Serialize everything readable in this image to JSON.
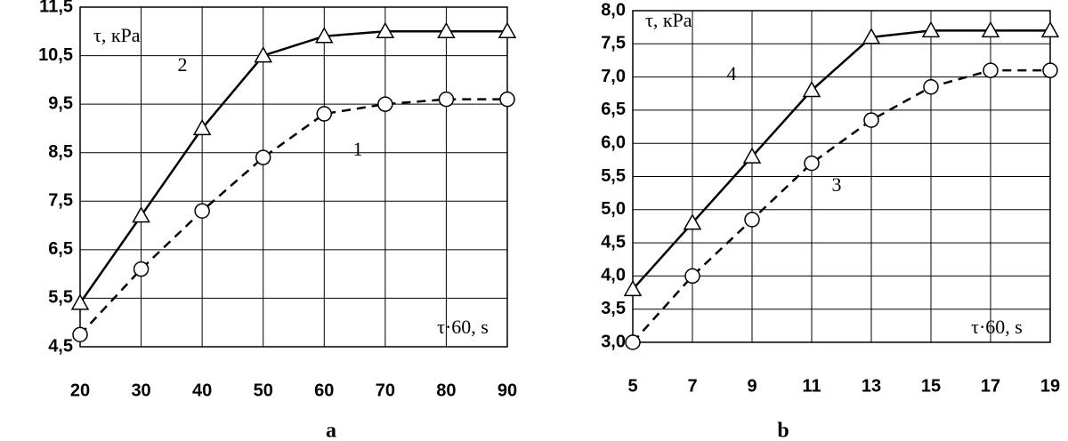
{
  "chart_data": [
    {
      "type": "line",
      "panel_label": "a",
      "y_label": "τ, кPa",
      "x_label": "τ·60, s",
      "x": [
        20,
        30,
        40,
        50,
        60,
        70,
        80,
        90
      ],
      "xlim": [
        20,
        90
      ],
      "xticks": [
        20,
        30,
        40,
        50,
        60,
        70,
        80,
        90
      ],
      "ylim": [
        4.5,
        11.5
      ],
      "yticks": [
        {
          "value": 4.5,
          "label": "4,5"
        },
        {
          "value": 5.5,
          "label": "5,5"
        },
        {
          "value": 6.5,
          "label": "6,5"
        },
        {
          "value": 7.5,
          "label": "7,5"
        },
        {
          "value": 8.5,
          "label": "8,5"
        },
        {
          "value": 9.5,
          "label": "9,5"
        },
        {
          "value": 10.5,
          "label": "10,5"
        },
        {
          "value": 11.5,
          "label": "11,5"
        }
      ],
      "grid": true,
      "series": [
        {
          "name": "2",
          "color": "#000000",
          "line_style": "solid",
          "marker": "triangle",
          "values": [
            5.4,
            7.2,
            9.0,
            10.5,
            10.9,
            11.0,
            11.0,
            11.0
          ]
        },
        {
          "name": "1",
          "color": "#000000",
          "line_style": "dashed",
          "marker": "circle",
          "values": [
            4.75,
            6.1,
            7.3,
            8.4,
            9.3,
            9.5,
            9.6,
            9.6
          ]
        }
      ]
    },
    {
      "type": "line",
      "panel_label": "b",
      "y_label": "τ, кPa",
      "x_label": "τ·60, s",
      "x": [
        5,
        7,
        9,
        11,
        13,
        15,
        17,
        19
      ],
      "xlim": [
        5,
        19
      ],
      "xticks": [
        5,
        7,
        9,
        11,
        13,
        15,
        17,
        19
      ],
      "ylim": [
        3.0,
        8.0
      ],
      "yticks": [
        {
          "value": 3.0,
          "label": "3,0"
        },
        {
          "value": 3.5,
          "label": "3,5"
        },
        {
          "value": 4.0,
          "label": "4,0"
        },
        {
          "value": 4.5,
          "label": "4,5"
        },
        {
          "value": 5.0,
          "label": "5,0"
        },
        {
          "value": 5.5,
          "label": "5,5"
        },
        {
          "value": 6.0,
          "label": "6,0"
        },
        {
          "value": 6.5,
          "label": "6,5"
        },
        {
          "value": 7.0,
          "label": "7,0"
        },
        {
          "value": 7.5,
          "label": "7,5"
        },
        {
          "value": 8.0,
          "label": "8,0"
        }
      ],
      "grid": true,
      "series": [
        {
          "name": "4",
          "color": "#000000",
          "line_style": "solid",
          "marker": "triangle",
          "values": [
            3.8,
            4.8,
            5.8,
            6.8,
            7.6,
            7.7,
            7.7,
            7.7
          ]
        },
        {
          "name": "3",
          "color": "#000000",
          "line_style": "dashed",
          "marker": "circle",
          "values": [
            3.0,
            4.0,
            4.85,
            5.7,
            6.35,
            6.85,
            7.1,
            7.1
          ]
        }
      ]
    }
  ]
}
